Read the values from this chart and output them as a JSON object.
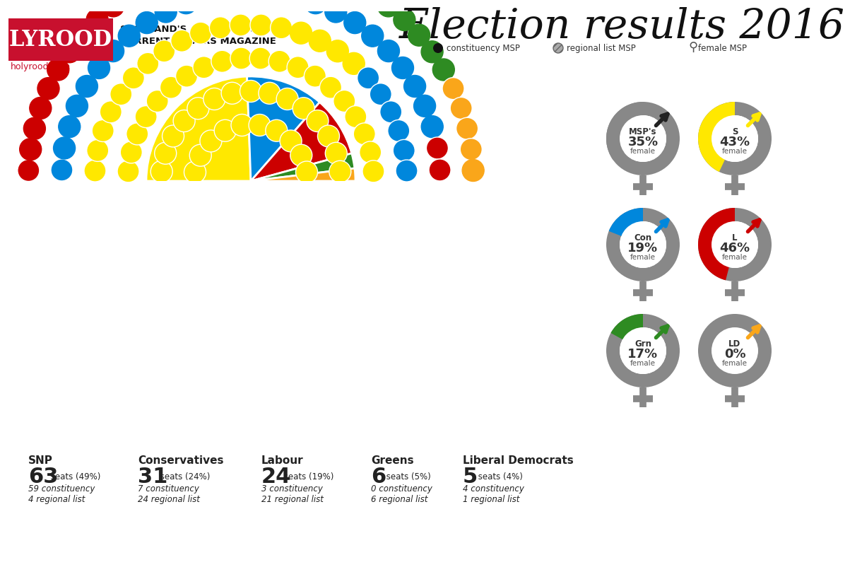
{
  "title": "Election results 2016",
  "subtitle_line1": "SCOTLAND'S AWARD-WINNING",
  "subtitle_line2": "CURRENT AFFAIRS MAGAZINE",
  "website": "holyrood.com",
  "parties": [
    {
      "name": "SNP",
      "seats": 63,
      "pct": 49,
      "constituency": 59,
      "regional_list": 4,
      "color": "#FFE800",
      "female_pct": 43,
      "gender_color": "#FFE800"
    },
    {
      "name": "Conservatives",
      "seats": 31,
      "pct": 24,
      "constituency": 7,
      "regional_list": 24,
      "color": "#0087DC",
      "female_pct": 19,
      "gender_color": "#0087DC"
    },
    {
      "name": "Labour",
      "seats": 24,
      "pct": 19,
      "constituency": 3,
      "regional_list": 21,
      "color": "#CC0000",
      "female_pct": 46,
      "gender_color": "#CC0000"
    },
    {
      "name": "Greens",
      "seats": 6,
      "pct": 5,
      "constituency": 0,
      "regional_list": 6,
      "color": "#2E8B22",
      "female_pct": 17,
      "gender_color": "#2E8B22"
    },
    {
      "name": "Liberal Democrats",
      "seats": 5,
      "pct": 4,
      "constituency": 4,
      "regional_list": 1,
      "color": "#FAA61A",
      "female_pct": 0,
      "gender_color": "#FAA61A"
    }
  ],
  "msp_female_pct": 35,
  "bg_color": "#FFFFFF",
  "holyrood_red": "#C8102E",
  "gray_ring": "#888888",
  "dark_gray": "#555555",
  "text_dark": "#222222"
}
